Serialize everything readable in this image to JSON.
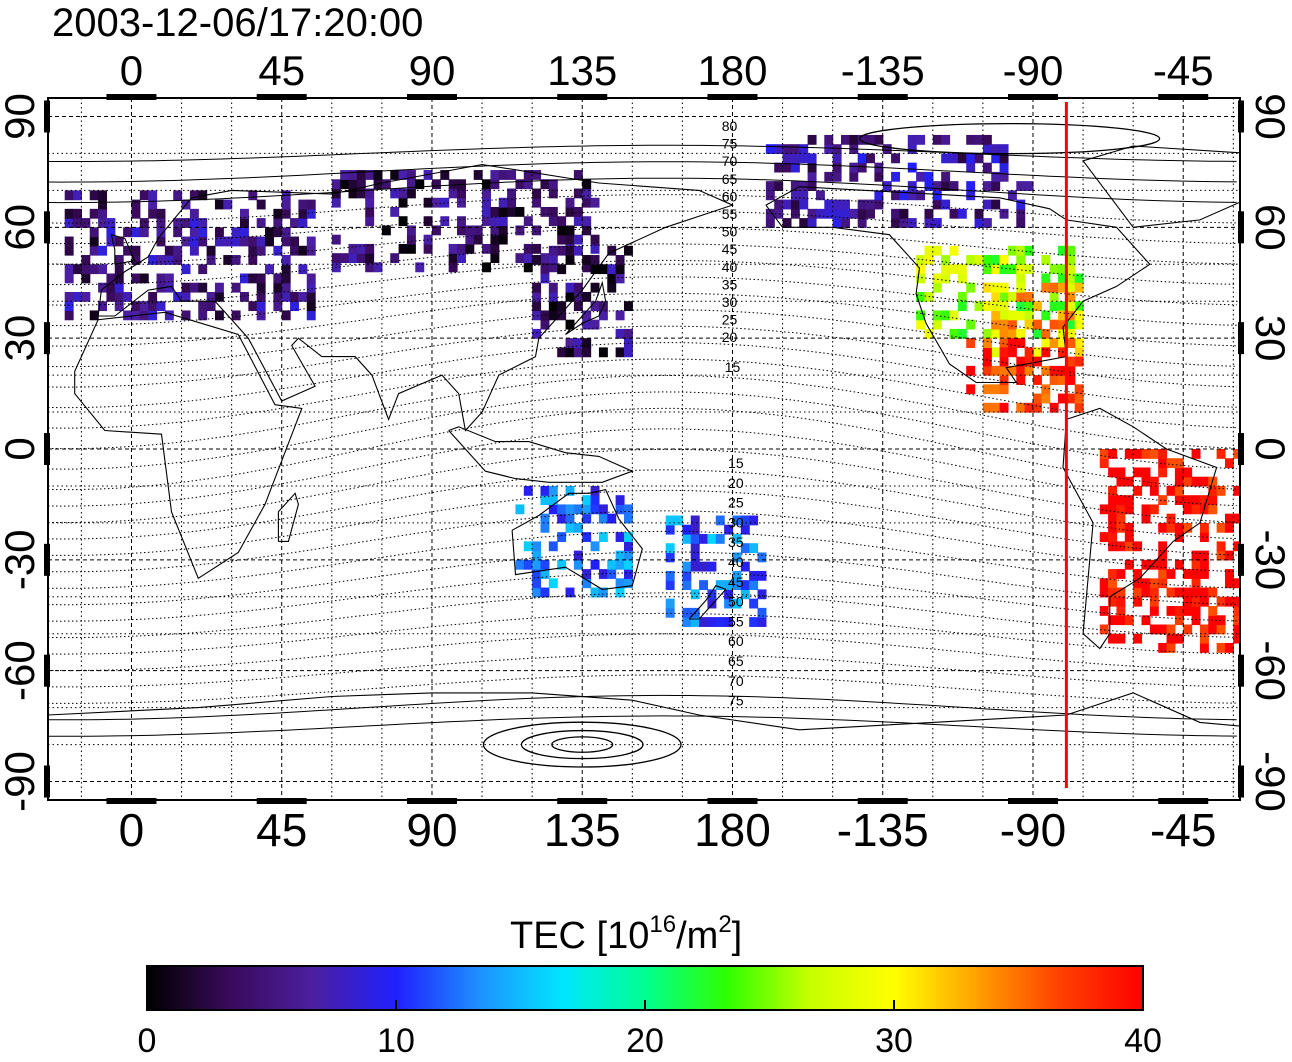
{
  "timestamp": "2003-12-06/17:20:00",
  "map": {
    "lon_tick_labels": [
      "0",
      "45",
      "90",
      "135",
      "180",
      "-135",
      "-90",
      "-45"
    ],
    "lon_tick_values": [
      0,
      45,
      90,
      135,
      180,
      225,
      270,
      315
    ],
    "lat_tick_labels": [
      "90",
      "60",
      "30",
      "0",
      "-30",
      "-60",
      "-90"
    ],
    "lat_tick_values": [
      90,
      60,
      30,
      0,
      -30,
      -60,
      -90
    ],
    "lon_range": [
      -25,
      332
    ],
    "lat_range": [
      -95,
      95
    ],
    "terminator_longitude": -80,
    "terminator_color": "#ff0000",
    "contour_labels_north": [
      "80",
      "75",
      "70",
      "65",
      "60",
      "55",
      "50",
      "45",
      "40",
      "35",
      "30",
      "25",
      "20",
      "15"
    ],
    "contour_labels_south": [
      "15",
      "20",
      "25",
      "30",
      "35",
      "40",
      "45",
      "50",
      "55",
      "60",
      "65",
      "70",
      "75"
    ]
  },
  "colorbar": {
    "title_main": "TEC  [10",
    "title_sup1": "16",
    "title_mid": "/m",
    "title_sup2": "2",
    "title_end": "]",
    "tick_labels": [
      "0",
      "10",
      "20",
      "30",
      "40"
    ],
    "tick_values": [
      0,
      10,
      20,
      30,
      40
    ],
    "range": [
      0,
      40
    ],
    "colors": [
      "#000000",
      "#3a0a5c",
      "#4b1fa0",
      "#2020ff",
      "#1e90ff",
      "#00e6ff",
      "#00ff90",
      "#30ff00",
      "#c8ff00",
      "#ffff00",
      "#ffa000",
      "#ff4000",
      "#ff0000"
    ]
  },
  "chart_data": {
    "type": "heatmap",
    "title": "2003-12-06/17:20:00",
    "xlabel": "",
    "ylabel": "",
    "xlim": [
      -25,
      332
    ],
    "ylim": [
      -95,
      95
    ],
    "colorbar_label": "TEC [10^16/m^2]",
    "value_range": [
      0,
      40
    ],
    "regions": [
      {
        "lon": [
          -20,
          55
        ],
        "lat": [
          35,
          68
        ],
        "tec": 5
      },
      {
        "lon": [
          60,
          140
        ],
        "lat": [
          48,
          75
        ],
        "tec": 4
      },
      {
        "lon": [
          120,
          148
        ],
        "lat": [
          25,
          55
        ],
        "tec": 4
      },
      {
        "lon": [
          190,
          270
        ],
        "lat": [
          60,
          85
        ],
        "tec": 6
      },
      {
        "lon": [
          235,
          285
        ],
        "lat": [
          30,
          55
        ],
        "tec": 26
      },
      {
        "lon": [
          255,
          285
        ],
        "lat": [
          25,
          45
        ],
        "tec": 32
      },
      {
        "lon": [
          250,
          285
        ],
        "lat": [
          10,
          30
        ],
        "tec": 38
      },
      {
        "lon": [
          290,
          335
        ],
        "lat": [
          -55,
          0
        ],
        "tec": 40
      },
      {
        "lon": [
          160,
          190
        ],
        "lat": [
          -48,
          -20
        ],
        "tec": 12
      },
      {
        "lon": [
          115,
          150
        ],
        "lat": [
          -40,
          -10
        ],
        "tec": 12
      }
    ]
  }
}
